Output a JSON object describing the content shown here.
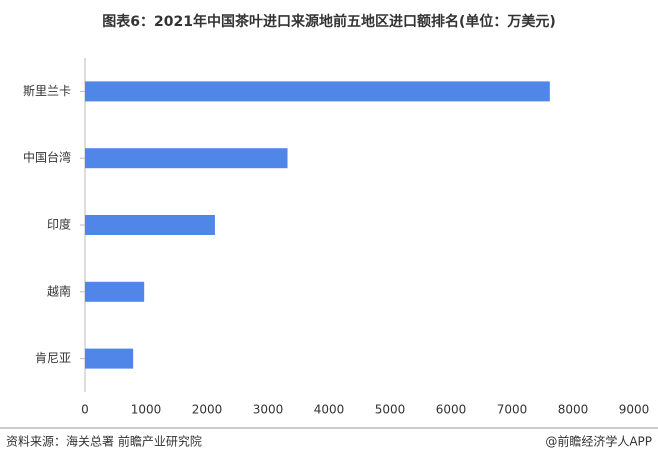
{
  "chart_data": {
    "type": "hbar",
    "title": "图表6：2021年中国茶叶进口来源地前五地区进口额排名(单位：万美元)",
    "categories": [
      "斯里兰卡",
      "中国台湾",
      "印度",
      "越南",
      "肯尼亚"
    ],
    "values": [
      7620,
      3320,
      2130,
      970,
      790
    ],
    "color": "#4f86e8",
    "xlim": [
      0,
      9000
    ],
    "xticks": [
      0,
      1000,
      2000,
      3000,
      4000,
      5000,
      6000,
      7000,
      8000,
      9000
    ],
    "grid": false
  },
  "footer": {
    "source": "资料来源：海关总署 前瞻产业研究院",
    "brand": "@前瞻经济学人APP"
  }
}
